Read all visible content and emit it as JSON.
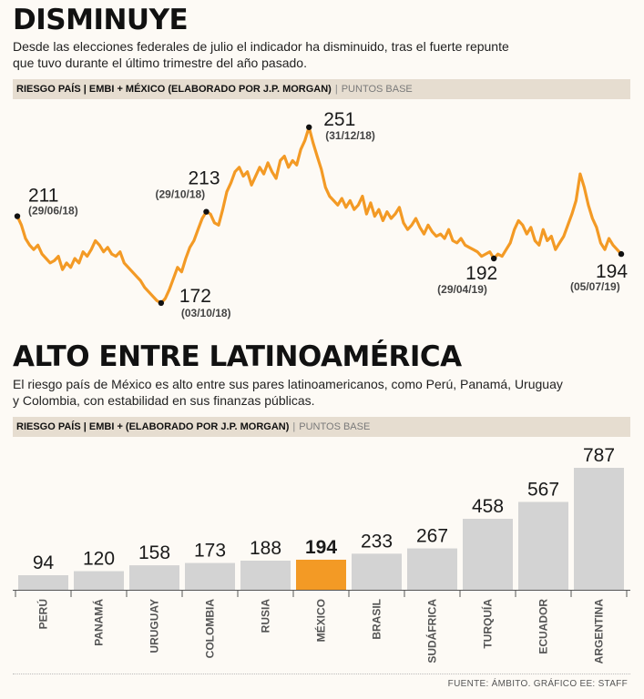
{
  "header1": {
    "title": "DISMINUYE",
    "subtitle_line1": "Desde las elecciones federales de julio el indicador ha disminuido, tras el fuerte repunte",
    "subtitle_line2": "que tuvo durante el último trimestre del año pasado.",
    "band_main": "RIESGO PAÍS | EMBI + MÉXICO (ELABORADO POR J.P. MORGAN)",
    "band_unit": "PUNTOS BASE"
  },
  "header2": {
    "title": "ALTO ENTRE LATINOAMÉRICA",
    "subtitle_line1": "El riesgo país de México es alto entre sus pares latinoamericanos, como Perú, Panamá, Uruguay",
    "subtitle_line2": "y Colombia, con estabilidad en sus finanzas públicas.",
    "band_main": "RIESGO PAÍS | EMBI + (ELABORADO POR J.P. MORGAN)",
    "band_unit": "PUNTOS BASE"
  },
  "source": "FUENTE: ÁMBITO. GRÁFICO EE: STAFF",
  "colors": {
    "accent": "#f39a25",
    "bar": "#d3d3d3",
    "band": "#e6ddd0"
  },
  "chart_data": [
    {
      "type": "line",
      "title": "RIESGO PAÍS | EMBI + MÉXICO (ELABORADO POR J.P. MORGAN)",
      "ylabel": "PUNTOS BASE",
      "ylim": [
        165,
        255
      ],
      "x_range": [
        "29/06/18",
        "05/07/19"
      ],
      "values": [
        211,
        207,
        201,
        198,
        196,
        198,
        194,
        192,
        190,
        191,
        193,
        187,
        190,
        188,
        192,
        190,
        195,
        193,
        196,
        200,
        198,
        195,
        197,
        194,
        193,
        195,
        190,
        188,
        186,
        184,
        182,
        179,
        177,
        175,
        173,
        172,
        174,
        178,
        183,
        188,
        186,
        192,
        197,
        200,
        205,
        210,
        213,
        212,
        208,
        207,
        214,
        222,
        226,
        231,
        233,
        229,
        231,
        225,
        229,
        233,
        230,
        235,
        231,
        228,
        236,
        238,
        233,
        236,
        234,
        241,
        245,
        251,
        244,
        238,
        232,
        224,
        220,
        218,
        216,
        219,
        215,
        218,
        214,
        216,
        220,
        212,
        217,
        211,
        214,
        209,
        213,
        210,
        212,
        215,
        208,
        205,
        207,
        210,
        206,
        203,
        207,
        204,
        202,
        203,
        201,
        205,
        200,
        199,
        201,
        198,
        197,
        196,
        195,
        193,
        194,
        195,
        192,
        194,
        193,
        196,
        199,
        205,
        209,
        207,
        203,
        206,
        200,
        198,
        205,
        200,
        202,
        196,
        199,
        202,
        207,
        212,
        218,
        230,
        224,
        216,
        210,
        206,
        199,
        196,
        201,
        198,
        196,
        194
      ],
      "annotations": [
        {
          "value": "211",
          "date": "(29/06/18)",
          "index": 0
        },
        {
          "value": "172",
          "date": "(03/10/18)",
          "index": 35
        },
        {
          "value": "213",
          "date": "(29/10/18)",
          "index": 46
        },
        {
          "value": "251",
          "date": "(31/12/18)",
          "index": 71
        },
        {
          "value": "192",
          "date": "(29/04/19)",
          "index": 116
        },
        {
          "value": "194",
          "date": "(05/07/19)",
          "index": 147
        }
      ]
    },
    {
      "type": "bar",
      "title": "RIESGO PAÍS | EMBI + (ELABORADO POR J.P. MORGAN)",
      "ylabel": "PUNTOS BASE",
      "categories": [
        "PERÚ",
        "PANAMÁ",
        "URUGUAY",
        "COLOMBIA",
        "RUSIA",
        "MÉXICO",
        "BRASIL",
        "SUDÁFRICA",
        "TURQUÍA",
        "ECUADOR",
        "ARGENTINA"
      ],
      "values": [
        94,
        120,
        158,
        173,
        188,
        194,
        233,
        267,
        458,
        567,
        787
      ],
      "highlight": "MÉXICO"
    }
  ]
}
